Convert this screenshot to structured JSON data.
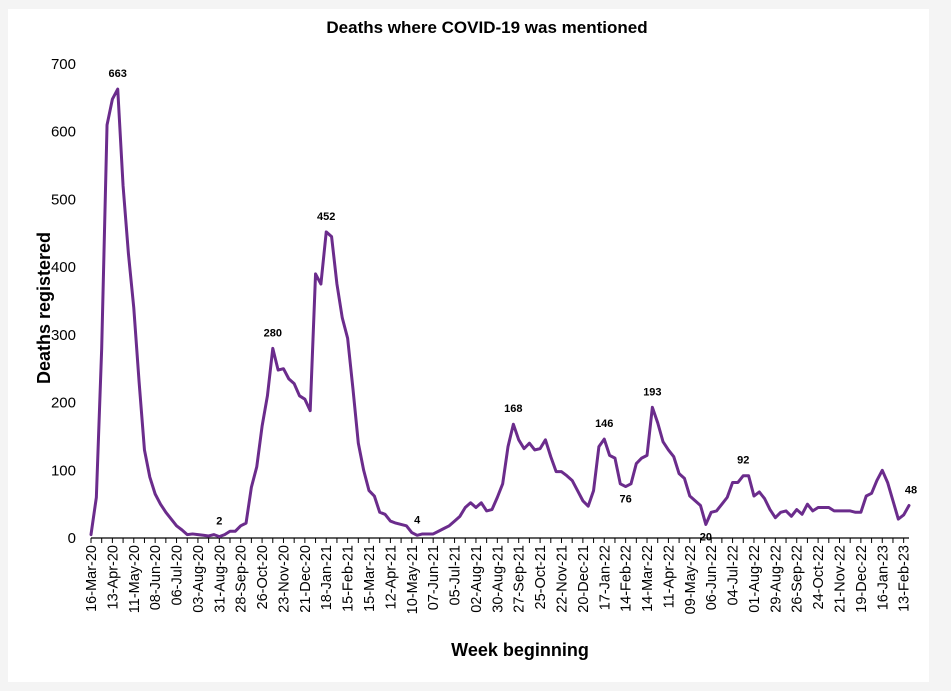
{
  "chart_data": {
    "type": "line",
    "title": "Deaths where COVID-19 was mentioned",
    "xlabel": "Week beginning",
    "ylabel": "Deaths registered",
    "ylim": [
      0,
      700
    ],
    "yticks": [
      "0",
      "100",
      "200",
      "300",
      "400",
      "500",
      "600",
      "700"
    ],
    "ytick_values": [
      0,
      100,
      200,
      300,
      400,
      500,
      600,
      700
    ],
    "x_start": "16-Mar-20",
    "x_interval": "weekly",
    "xtick_every_weeks": 4,
    "xtick_labels": [
      "16-Mar-20",
      "13-Apr-20",
      "11-May-20",
      "08-Jun-20",
      "06-Jul-20",
      "03-Aug-20",
      "31-Aug-20",
      "28-Sep-20",
      "26-Oct-20",
      "23-Nov-20",
      "21-Dec-20",
      "18-Jan-21",
      "15-Feb-21",
      "15-Mar-21",
      "12-Apr-21",
      "10-May-21",
      "07-Jun-21",
      "05-Jul-21",
      "02-Aug-21",
      "30-Aug-21",
      "27-Sep-21",
      "25-Oct-21",
      "22-Nov-21",
      "20-Dec-21",
      "17-Jan-22",
      "14-Feb-22",
      "14-Mar-22",
      "11-Apr-22",
      "09-May-22",
      "06-Jun-22",
      "04-Jul-22",
      "01-Aug-22",
      "29-Aug-22",
      "26-Sep-22",
      "24-Oct-22",
      "21-Nov-22",
      "19-Dec-22",
      "16-Jan-23",
      "13-Feb-23"
    ],
    "grid": false,
    "legend": "none",
    "series": [
      {
        "name": "Deaths registered",
        "color": "#6b2c8c",
        "values": [
          5,
          60,
          280,
          610,
          648,
          663,
          520,
          420,
          340,
          230,
          130,
          90,
          65,
          50,
          38,
          28,
          18,
          12,
          5,
          6,
          5,
          4,
          3,
          5,
          2,
          5,
          10,
          10,
          18,
          22,
          75,
          105,
          165,
          210,
          280,
          248,
          250,
          235,
          228,
          210,
          205,
          188,
          390,
          375,
          452,
          445,
          375,
          325,
          295,
          220,
          140,
          100,
          70,
          62,
          38,
          35,
          25,
          22,
          20,
          18,
          8,
          4,
          6,
          6,
          6,
          10,
          14,
          18,
          25,
          32,
          45,
          52,
          45,
          52,
          40,
          42,
          60,
          80,
          135,
          168,
          145,
          132,
          140,
          130,
          132,
          145,
          120,
          98,
          98,
          92,
          85,
          70,
          55,
          47,
          70,
          135,
          146,
          122,
          118,
          80,
          76,
          80,
          110,
          118,
          122,
          193,
          170,
          142,
          130,
          120,
          95,
          88,
          62,
          55,
          48,
          20,
          38,
          40,
          50,
          60,
          82,
          82,
          92,
          92,
          62,
          68,
          58,
          42,
          30,
          38,
          40,
          32,
          42,
          35,
          50,
          40,
          45,
          45,
          45,
          40,
          40,
          40,
          40,
          38,
          38,
          62,
          66,
          85,
          100,
          82,
          55,
          28,
          34,
          48
        ]
      }
    ],
    "annotations": [
      {
        "index": 5,
        "label": "663",
        "position": "above"
      },
      {
        "index": 24,
        "label": "2",
        "position": "above"
      },
      {
        "index": 34,
        "label": "280",
        "position": "above"
      },
      {
        "index": 44,
        "label": "452",
        "position": "above"
      },
      {
        "index": 61,
        "label": "4",
        "position": "above"
      },
      {
        "index": 79,
        "label": "168",
        "position": "above"
      },
      {
        "index": 96,
        "label": "146",
        "position": "above"
      },
      {
        "index": 100,
        "label": "76",
        "position": "below"
      },
      {
        "index": 105,
        "label": "193",
        "position": "above"
      },
      {
        "index": 115,
        "label": "20",
        "position": "below"
      },
      {
        "index": 122,
        "label": "92",
        "position": "above"
      },
      {
        "index": 153,
        "label": "48",
        "position": "above"
      }
    ]
  }
}
